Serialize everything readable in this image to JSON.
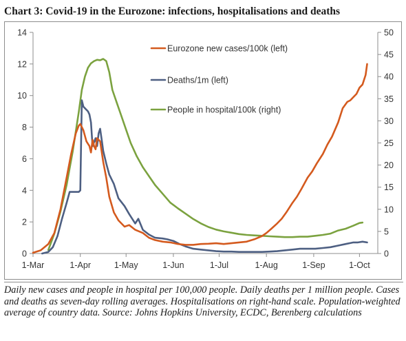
{
  "chart_data": {
    "type": "line",
    "title": "Chart 3: Covid-19 in the Eurozone: infections, hospitalisations and deaths",
    "caption": "Daily new cases and people in hospital per 100,000 people. Daily deaths per 1 million people. Cases and deaths as seven-day rolling averages. Hospitalisations on right-hand scale. Population-weighted average of country data. Source: Johns Hopkins University, ECDC, Berenberg calculations",
    "x_labels": [
      "1-Mar",
      "1-Apr",
      "1-May",
      "1-Jun",
      "1-Jul",
      "1-Aug",
      "1-Sep",
      "1-Oct"
    ],
    "x_label_days": [
      0,
      31,
      61,
      92,
      122,
      153,
      184,
      214
    ],
    "x_unit": "days since 1-Mar",
    "y_left": {
      "ticks": [
        0,
        2,
        4,
        6,
        8,
        10,
        12,
        14
      ],
      "range": [
        0,
        14
      ]
    },
    "y_right": {
      "ticks": [
        0,
        5,
        10,
        15,
        20,
        25,
        30,
        35,
        40,
        45,
        50
      ],
      "range": [
        0,
        50
      ]
    },
    "grid": false,
    "legend": "inside top-right",
    "series": [
      {
        "name": "Eurozone new cases/100k (left)",
        "color": "#d45a1e",
        "axis": "left",
        "points": [
          [
            0,
            0.05
          ],
          [
            5,
            0.2
          ],
          [
            10,
            0.6
          ],
          [
            14,
            1.3
          ],
          [
            18,
            2.8
          ],
          [
            22,
            4.8
          ],
          [
            25,
            6.3
          ],
          [
            28,
            7.6
          ],
          [
            30,
            8.1
          ],
          [
            31,
            8.2
          ],
          [
            33,
            7.8
          ],
          [
            35,
            7.1
          ],
          [
            37,
            6.8
          ],
          [
            38,
            6.4
          ],
          [
            39,
            7.2
          ],
          [
            40,
            6.8
          ],
          [
            41,
            6.6
          ],
          [
            42,
            7.3
          ],
          [
            44,
            7.1
          ],
          [
            46,
            5.8
          ],
          [
            48,
            4.8
          ],
          [
            50,
            3.6
          ],
          [
            53,
            2.6
          ],
          [
            56,
            2.1
          ],
          [
            60,
            1.7
          ],
          [
            63,
            1.8
          ],
          [
            67,
            1.5
          ],
          [
            72,
            1.3
          ],
          [
            76,
            1.0
          ],
          [
            80,
            0.85
          ],
          [
            85,
            0.75
          ],
          [
            90,
            0.7
          ],
          [
            95,
            0.6
          ],
          [
            100,
            0.55
          ],
          [
            105,
            0.55
          ],
          [
            110,
            0.6
          ],
          [
            115,
            0.62
          ],
          [
            120,
            0.65
          ],
          [
            125,
            0.6
          ],
          [
            130,
            0.65
          ],
          [
            135,
            0.7
          ],
          [
            140,
            0.75
          ],
          [
            145,
            0.9
          ],
          [
            150,
            1.1
          ],
          [
            153,
            1.3
          ],
          [
            156,
            1.55
          ],
          [
            160,
            1.9
          ],
          [
            163,
            2.2
          ],
          [
            166,
            2.6
          ],
          [
            170,
            3.2
          ],
          [
            173,
            3.6
          ],
          [
            176,
            4.1
          ],
          [
            180,
            4.8
          ],
          [
            183,
            5.2
          ],
          [
            186,
            5.7
          ],
          [
            190,
            6.3
          ],
          [
            193,
            6.9
          ],
          [
            196,
            7.4
          ],
          [
            200,
            8.3
          ],
          [
            203,
            9.2
          ],
          [
            206,
            9.6
          ],
          [
            208,
            9.7
          ],
          [
            210,
            9.9
          ],
          [
            212,
            10.1
          ],
          [
            214,
            10.5
          ],
          [
            216,
            10.7
          ],
          [
            218,
            11.3
          ],
          [
            219,
            12.0
          ]
        ]
      },
      {
        "name": "Deaths/1m (left)",
        "color": "#4d5f82",
        "axis": "left",
        "points": [
          [
            6,
            0.0
          ],
          [
            10,
            0.1
          ],
          [
            13,
            0.4
          ],
          [
            16,
            1.1
          ],
          [
            19,
            2.2
          ],
          [
            22,
            3.2
          ],
          [
            24,
            3.9
          ],
          [
            27,
            3.9
          ],
          [
            30,
            3.9
          ],
          [
            31,
            4.0
          ],
          [
            32,
            9.7
          ],
          [
            33,
            9.3
          ],
          [
            36,
            9.0
          ],
          [
            37,
            8.8
          ],
          [
            38,
            8.3
          ],
          [
            39,
            6.8
          ],
          [
            41,
            7.3
          ],
          [
            42,
            6.8
          ],
          [
            43,
            7.6
          ],
          [
            44,
            7.9
          ],
          [
            45,
            7.2
          ],
          [
            46,
            6.5
          ],
          [
            48,
            5.7
          ],
          [
            50,
            5.0
          ],
          [
            53,
            4.4
          ],
          [
            56,
            3.5
          ],
          [
            60,
            3.0
          ],
          [
            63,
            2.5
          ],
          [
            65,
            2.2
          ],
          [
            67,
            1.9
          ],
          [
            69,
            2.2
          ],
          [
            72,
            1.5
          ],
          [
            76,
            1.2
          ],
          [
            80,
            1.0
          ],
          [
            85,
            0.95
          ],
          [
            88,
            0.9
          ],
          [
            92,
            0.8
          ],
          [
            96,
            0.6
          ],
          [
            100,
            0.45
          ],
          [
            105,
            0.3
          ],
          [
            110,
            0.25
          ],
          [
            115,
            0.2
          ],
          [
            120,
            0.15
          ],
          [
            125,
            0.12
          ],
          [
            130,
            0.12
          ],
          [
            135,
            0.1
          ],
          [
            140,
            0.1
          ],
          [
            145,
            0.1
          ],
          [
            150,
            0.1
          ],
          [
            155,
            0.12
          ],
          [
            160,
            0.15
          ],
          [
            165,
            0.2
          ],
          [
            170,
            0.25
          ],
          [
            175,
            0.3
          ],
          [
            180,
            0.3
          ],
          [
            185,
            0.3
          ],
          [
            190,
            0.35
          ],
          [
            195,
            0.4
          ],
          [
            200,
            0.5
          ],
          [
            205,
            0.6
          ],
          [
            210,
            0.7
          ],
          [
            213,
            0.7
          ],
          [
            216,
            0.75
          ],
          [
            219,
            0.7
          ]
        ]
      },
      {
        "name": "People in hospital/100k (right)",
        "color": "#7ba23f",
        "axis": "right",
        "points": [
          [
            10,
            0.8
          ],
          [
            14,
            4.5
          ],
          [
            18,
            9.5
          ],
          [
            22,
            15.5
          ],
          [
            26,
            23
          ],
          [
            30,
            32
          ],
          [
            32,
            37
          ],
          [
            34,
            40
          ],
          [
            36,
            42
          ],
          [
            38,
            43
          ],
          [
            40,
            43.5
          ],
          [
            42,
            43.8
          ],
          [
            44,
            43.7
          ],
          [
            46,
            44
          ],
          [
            48,
            43.5
          ],
          [
            50,
            41
          ],
          [
            52,
            37
          ],
          [
            55,
            34
          ],
          [
            58,
            31
          ],
          [
            61,
            28
          ],
          [
            64,
            25
          ],
          [
            68,
            22
          ],
          [
            72,
            19.5
          ],
          [
            76,
            17.5
          ],
          [
            80,
            15.5
          ],
          [
            85,
            13.5
          ],
          [
            90,
            11.5
          ],
          [
            95,
            10.2
          ],
          [
            100,
            9.0
          ],
          [
            105,
            7.8
          ],
          [
            110,
            6.8
          ],
          [
            115,
            6.0
          ],
          [
            120,
            5.4
          ],
          [
            125,
            5.0
          ],
          [
            130,
            4.7
          ],
          [
            135,
            4.4
          ],
          [
            140,
            4.2
          ],
          [
            145,
            4.1
          ],
          [
            150,
            4.0
          ],
          [
            155,
            3.9
          ],
          [
            160,
            3.8
          ],
          [
            165,
            3.7
          ],
          [
            170,
            3.7
          ],
          [
            175,
            3.8
          ],
          [
            180,
            3.8
          ],
          [
            185,
            4.0
          ],
          [
            190,
            4.2
          ],
          [
            195,
            4.5
          ],
          [
            200,
            5.2
          ],
          [
            205,
            5.6
          ],
          [
            210,
            6.3
          ],
          [
            214,
            6.9
          ],
          [
            216,
            7.0
          ]
        ]
      }
    ]
  }
}
